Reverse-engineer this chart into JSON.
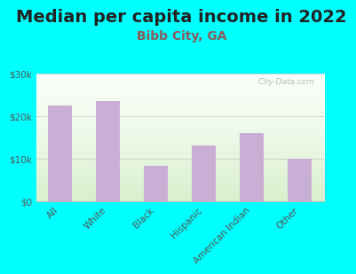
{
  "title": "Median per capita income in 2022",
  "subtitle": "Bibb City, GA",
  "categories": [
    "All",
    "White",
    "Black",
    "Hispanic",
    "American Indian",
    "Other"
  ],
  "values": [
    22500,
    23500,
    8200,
    13000,
    16000,
    10000
  ],
  "bar_color": "#c9aed6",
  "background_outer": "#00ffff",
  "ylim": [
    0,
    30000
  ],
  "yticks": [
    0,
    10000,
    20000,
    30000
  ],
  "ytick_labels": [
    "$0",
    "$10k",
    "$20k",
    "$30k"
  ],
  "title_fontsize": 14,
  "subtitle_fontsize": 10,
  "subtitle_color": "#8b5a5a",
  "watermark": "City-Data.com",
  "grid_color": "#cccccc",
  "tick_color": "#555555",
  "tick_fontsize": 7.5
}
